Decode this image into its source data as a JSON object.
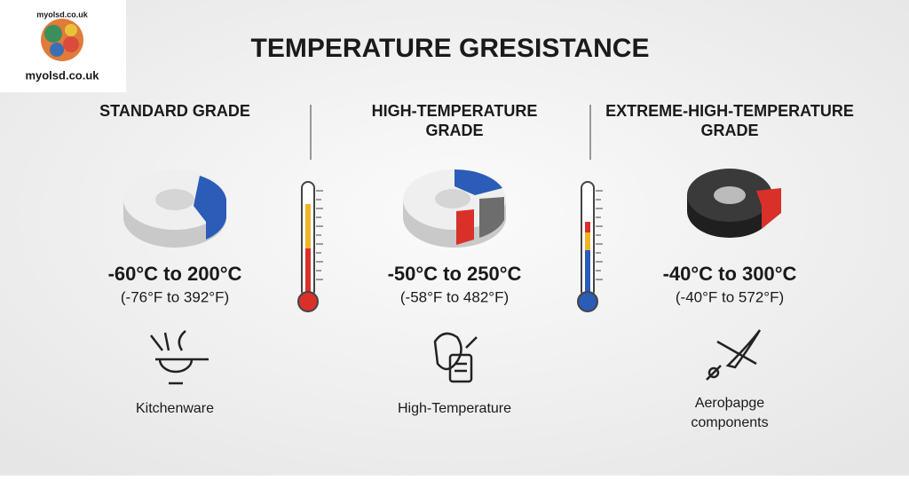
{
  "logo": {
    "top": "myolsd.co.uk",
    "bottom": "myolsd.co.uk"
  },
  "title": "TEMPERATURE GRESISTANCE",
  "columns": [
    {
      "grade": [
        "STANDARD GRADE"
      ],
      "range_c": "-60°C to 200°C",
      "range_f": "(-76°F to 392°F)",
      "use": [
        "Kitchenware"
      ]
    },
    {
      "grade": [
        "HIGH-TEMPERATURE",
        "GRADE"
      ],
      "range_c": "-50°C to 250°C",
      "range_f": "(-58°F to 482°F)",
      "use": [
        "High-Temperature"
      ]
    },
    {
      "grade": [
        "EXTREME-HIGH-TEMPERATURE",
        "GRADE"
      ],
      "range_c": "-40°C to 300°C",
      "range_f": "(-40°F to 572°F)",
      "use": [
        "Aeroþapge",
        "components"
      ]
    }
  ]
}
